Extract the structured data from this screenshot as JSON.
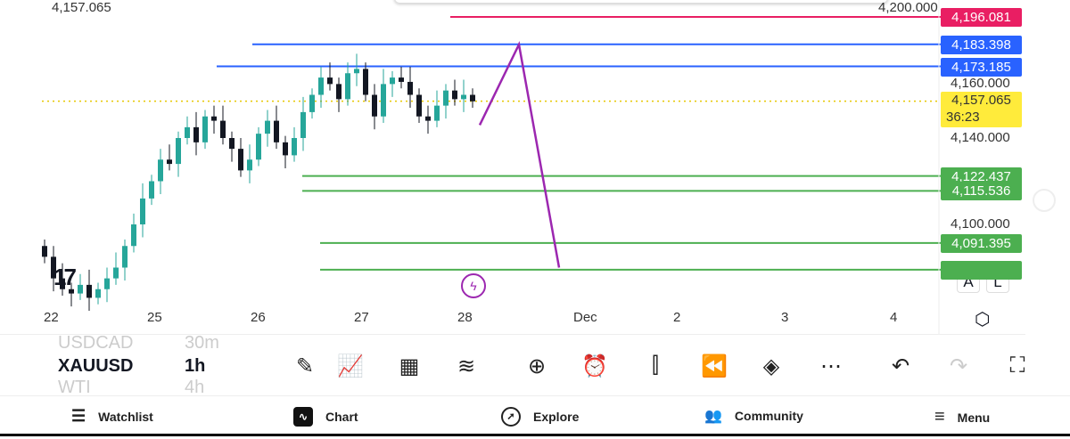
{
  "top_cut_label": "4,157.065",
  "price_axis": {
    "ticks": [
      {
        "label": "4,200.000",
        "value": 4200
      },
      {
        "label": "4,160.000",
        "value": 4160
      },
      {
        "label": "4,140.000",
        "value": 4140
      },
      {
        "label": "4,100.000",
        "value": 4100
      }
    ]
  },
  "current_price": {
    "label": "4,157.065",
    "value": 4157.065,
    "countdown": "36:23",
    "color": "#ffeb3b"
  },
  "levels": [
    {
      "label": "4,196.081",
      "value": 4196.081,
      "color": "#e91e63"
    },
    {
      "label": "4,183.398",
      "value": 4183.398,
      "color": "#2962ff"
    },
    {
      "label": "4,173.185",
      "value": 4173.185,
      "color": "#2962ff"
    },
    {
      "label": "4,122.437",
      "value": 4122.437,
      "color": "#4caf50"
    },
    {
      "label": "4,115.536",
      "value": 4115.536,
      "color": "#4caf50"
    },
    {
      "label": "4,091.395",
      "value": 4091.395,
      "color": "#4caf50"
    },
    {
      "label": "",
      "value": 4079,
      "color": "#4caf50"
    }
  ],
  "candles": {
    "close": [
      4085,
      4075,
      4070,
      4068,
      4072,
      4066,
      4070,
      4075,
      4080,
      4090,
      4100,
      4112,
      4120,
      4130,
      4128,
      4140,
      4145,
      4138,
      4150,
      4148,
      4140,
      4135,
      4125,
      4130,
      4142,
      4148,
      4138,
      4132,
      4140,
      4152,
      4160,
      4168,
      4165,
      4158,
      4170,
      4172,
      4160,
      4150,
      4165,
      4168,
      4166,
      4160,
      4150,
      4148,
      4155,
      4162,
      4158,
      4160,
      4157
    ],
    "up_color": "#26a69a",
    "down_color": "#131722"
  },
  "projection": {
    "color": "#9c27b0",
    "prices": [
      4146,
      4183.3,
      4080
    ]
  },
  "dates": [
    "22",
    "25",
    "26",
    "27",
    "28",
    "Dec",
    "2",
    "3",
    "4"
  ],
  "buttons": {
    "auto": "A",
    "log": "L"
  },
  "symbols": {
    "prev": "USDCAD",
    "current": "XAUUSD",
    "next": "WTI",
    "prev_interval": "30m",
    "interval": "1h",
    "next_interval": "4h"
  },
  "toolbar": [
    "draw-pencil",
    "indicators",
    "layouts",
    "compare",
    "add",
    "alert",
    "bar-style",
    "replay",
    "layers",
    "more",
    "undo",
    "redo",
    "fullscreen"
  ],
  "nav": [
    {
      "label": "Watchlist",
      "icon": "watchlist-icon"
    },
    {
      "label": "Chart",
      "icon": "chart-icon"
    },
    {
      "label": "Explore",
      "icon": "compass-icon"
    },
    {
      "label": "Community",
      "icon": "community-icon"
    },
    {
      "label": "Menu",
      "icon": "menu-icon"
    }
  ]
}
